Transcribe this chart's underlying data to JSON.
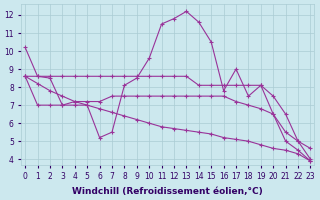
{
  "xlabel": "Windchill (Refroidissement éolien,°C)",
  "xlim": [
    -0.3,
    23.3
  ],
  "ylim": [
    3.7,
    12.6
  ],
  "xticks": [
    0,
    1,
    2,
    3,
    4,
    5,
    6,
    7,
    8,
    9,
    10,
    11,
    12,
    13,
    14,
    15,
    16,
    17,
    18,
    19,
    20,
    21,
    22,
    23
  ],
  "yticks": [
    4,
    5,
    6,
    7,
    8,
    9,
    10,
    11,
    12
  ],
  "background_color": "#cce8ee",
  "grid_color": "#aaccd4",
  "line_color": "#993399",
  "lines": [
    {
      "x": [
        0,
        1,
        2,
        3,
        4,
        5,
        6,
        7,
        8,
        9,
        10,
        11,
        12,
        13,
        14,
        15,
        16,
        17,
        18,
        19,
        20,
        21,
        22,
        23
      ],
      "y": [
        10.2,
        8.6,
        8.5,
        7.0,
        7.0,
        7.0,
        5.2,
        5.5,
        8.1,
        8.5,
        9.6,
        11.5,
        11.8,
        12.2,
        11.6,
        10.5,
        7.8,
        9.0,
        7.5,
        8.1,
        7.5,
        6.5,
        5.0,
        4.6
      ]
    },
    {
      "x": [
        0,
        1,
        2,
        3,
        4,
        5,
        6,
        7,
        8,
        9,
        10,
        11,
        12,
        13,
        14,
        15,
        16,
        17,
        18,
        19,
        20,
        21,
        22,
        23
      ],
      "y": [
        8.6,
        8.6,
        8.6,
        8.6,
        8.6,
        8.6,
        8.6,
        8.6,
        8.6,
        8.6,
        8.6,
        8.6,
        8.6,
        8.6,
        8.1,
        8.1,
        8.1,
        8.1,
        8.1,
        8.1,
        6.5,
        5.0,
        4.5,
        3.9
      ]
    },
    {
      "x": [
        0,
        1,
        2,
        3,
        4,
        5,
        6,
        7,
        8,
        9,
        10,
        11,
        12,
        13,
        14,
        15,
        16,
        17,
        18,
        19,
        20,
        21,
        22,
        23
      ],
      "y": [
        8.6,
        7.0,
        7.0,
        7.0,
        7.2,
        7.2,
        7.2,
        7.5,
        7.5,
        7.5,
        7.5,
        7.5,
        7.5,
        7.5,
        7.5,
        7.5,
        7.5,
        7.2,
        7.0,
        6.8,
        6.5,
        5.5,
        5.0,
        4.0
      ]
    },
    {
      "x": [
        0,
        1,
        2,
        3,
        4,
        5,
        6,
        7,
        8,
        9,
        10,
        11,
        12,
        13,
        14,
        15,
        16,
        17,
        18,
        19,
        20,
        21,
        22,
        23
      ],
      "y": [
        8.6,
        8.2,
        7.8,
        7.5,
        7.2,
        7.0,
        6.8,
        6.6,
        6.4,
        6.2,
        6.0,
        5.8,
        5.7,
        5.6,
        5.5,
        5.4,
        5.2,
        5.1,
        5.0,
        4.8,
        4.6,
        4.5,
        4.3,
        3.9
      ]
    }
  ],
  "font_color": "#330066",
  "tick_fontsize": 5.5,
  "label_fontsize": 6.5
}
